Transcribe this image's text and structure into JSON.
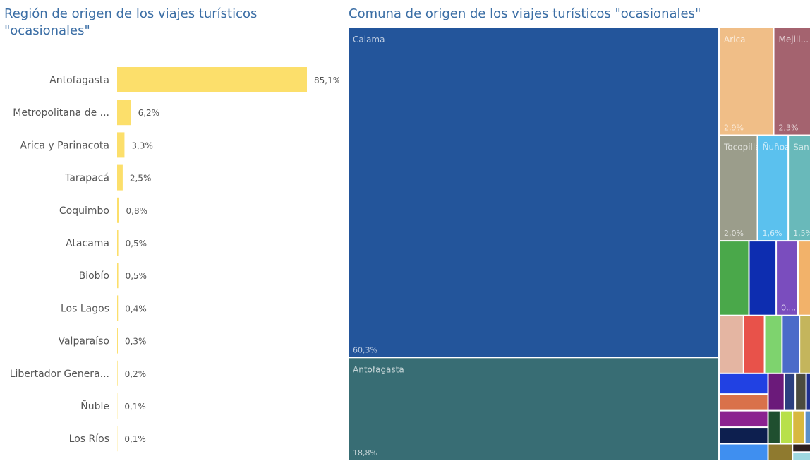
{
  "chart_data": [
    {
      "type": "bar",
      "orientation": "horizontal",
      "title": "Región de origen de los viajes turísticos \"ocasionales\"",
      "categories": [
        "Antofagasta",
        "Metropolitana de ...",
        "Arica y Parinacota",
        "Tarapacá",
        "Coquimbo",
        "Atacama",
        "Biobío",
        "Los Lagos",
        "Valparaíso",
        "Libertador Genera...",
        "Ñuble",
        "Los Ríos"
      ],
      "values": [
        85.1,
        6.2,
        3.3,
        2.5,
        0.8,
        0.5,
        0.5,
        0.4,
        0.3,
        0.2,
        0.1,
        0.1
      ],
      "value_labels": [
        "85,1%",
        "6,2%",
        "3,3%",
        "2,5%",
        "0,8%",
        "0,5%",
        "0,5%",
        "0,4%",
        "0,3%",
        "0,2%",
        "0,1%",
        "0,1%"
      ],
      "color": "#fcdf6b"
    },
    {
      "type": "treemap",
      "title": "Comuna de origen de los viajes turísticos \"ocasionales\"",
      "categories": [
        "Calama",
        "Antofagasta",
        "Arica",
        "Mejill...",
        "Tocopilla",
        "Ñuñoa",
        "San Pe...",
        null,
        null,
        null,
        null,
        null,
        null,
        null,
        null,
        null,
        null,
        null,
        null,
        null,
        null,
        null,
        null,
        null,
        null,
        null,
        null,
        null,
        null,
        null,
        null,
        null
      ],
      "values": [
        60.3,
        18.8,
        2.9,
        2.3,
        2.0,
        1.6,
        1.5,
        1.1,
        1.0,
        0.8,
        0.7,
        0.7,
        0.6,
        0.5,
        0.5,
        0.5,
        0.5,
        0.4,
        0.4,
        0.4,
        0.4,
        0.3,
        0.2,
        0.2,
        0.2,
        0.2,
        0.2,
        0.2,
        0.2,
        0.2,
        0.1,
        0.1
      ],
      "value_labels": [
        "60,3%",
        "18,8%",
        "2,9%",
        "2,3%",
        "2,0%",
        "1,6%",
        "1,5%",
        null,
        null,
        "0,...",
        null,
        null,
        null,
        null,
        null,
        null,
        null,
        null,
        null,
        null,
        null,
        null,
        null,
        null,
        null,
        null,
        null,
        null,
        null,
        null,
        null,
        null
      ],
      "colors": [
        "#23559b",
        "#386d74",
        "#f0be87",
        "#a4636f",
        "#9b9d8b",
        "#5bc1ee",
        "#69b9ba",
        "#4aa84a",
        "#0d2db0",
        "#7a4dbe",
        "#f2b26a",
        "#e4b5a2",
        "#e8524a",
        "#7ed36e",
        "#4b6bc9",
        "#c4b55c",
        "#2141e3",
        "#d9714a",
        "#8b2290",
        "#0d1f4f",
        "#3f8ff0",
        "#6b1a7a",
        "#2b3f7f",
        "#4b4b3f",
        "#1e2f8f",
        "#1f4f2f",
        "#b8e04a",
        "#d8b83f",
        "#5b8fc9",
        "#8f7a2f",
        "#2f1f1f",
        "#9fd8e0"
      ]
    }
  ]
}
